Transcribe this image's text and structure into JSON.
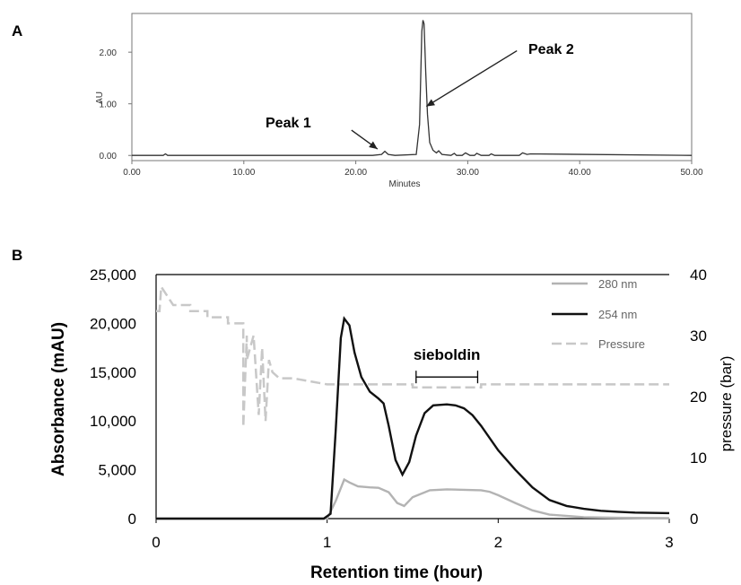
{
  "chart_data": [
    {
      "panel": "A",
      "type": "line",
      "xlabel": "Minutes",
      "ylabel": "AU",
      "xlim": [
        0,
        50
      ],
      "ylim": [
        -0.1,
        2.75
      ],
      "x_ticks": [
        "0.00",
        "10.00",
        "20.00",
        "30.00",
        "40.00",
        "50.00"
      ],
      "y_ticks": [
        "0.00",
        "1.00",
        "2.00"
      ],
      "x_tick_values": [
        0,
        10,
        20,
        30,
        40,
        50
      ],
      "y_tick_values": [
        0,
        1,
        2
      ],
      "series": [
        {
          "color": "#333333",
          "x": [
            0,
            2.8,
            3.0,
            3.2,
            21.5,
            22.3,
            22.6,
            22.9,
            23.5,
            25.4,
            25.7,
            25.9,
            26.0,
            26.1,
            26.25,
            26.4,
            26.6,
            26.9,
            27.2,
            27.4,
            27.7,
            28.5,
            28.8,
            29.0,
            29.5,
            29.8,
            30.2,
            30.6,
            30.8,
            31.2,
            31.9,
            32.1,
            32.4,
            34.6,
            34.9,
            35.3,
            35.6,
            50
          ],
          "y": [
            0,
            0,
            0.03,
            0,
            0,
            0.02,
            0.08,
            0.02,
            0,
            0.02,
            0.6,
            2.4,
            2.62,
            2.55,
            1.6,
            0.8,
            0.25,
            0.1,
            0.05,
            0.09,
            0.02,
            0,
            0.04,
            0,
            0,
            0.05,
            0,
            0,
            0.04,
            0,
            0,
            0.03,
            0,
            0,
            0.05,
            0.02,
            0.03,
            0
          ]
        }
      ],
      "annotations": [
        {
          "text": "Peak 1",
          "x": 22.5,
          "y": 0.09
        },
        {
          "text": "Peak 2",
          "x": 26.3,
          "y": 0.95
        }
      ]
    },
    {
      "panel": "B",
      "type": "line",
      "xlabel": "Retention time (hour)",
      "ylabel": "Absorbance (mAU)",
      "y2label": "pressure (bar)",
      "xlim": [
        0,
        3
      ],
      "ylim": [
        0,
        25000
      ],
      "y2lim": [
        0,
        40
      ],
      "x_ticks": [
        "0",
        "1",
        "2",
        "3"
      ],
      "y_ticks": [
        "0",
        "5,000",
        "10,000",
        "15,000",
        "20,000",
        "25,000"
      ],
      "y2_ticks": [
        "0",
        "10",
        "20",
        "30",
        "40"
      ],
      "x_tick_values": [
        0,
        1,
        2,
        3
      ],
      "y_tick_values": [
        0,
        5000,
        10000,
        15000,
        20000,
        25000
      ],
      "y2_tick_values": [
        0,
        10,
        20,
        30,
        40
      ],
      "legend": {
        "position": "top-right",
        "entries": [
          "280 nm",
          "254 nm",
          "Pressure"
        ]
      },
      "series": [
        {
          "name": "280 nm",
          "color": "#b3b3b3",
          "axis": "left",
          "x": [
            0,
            1.0,
            1.05,
            1.1,
            1.13,
            1.18,
            1.25,
            1.3,
            1.36,
            1.41,
            1.45,
            1.5,
            1.6,
            1.7,
            1.8,
            1.9,
            1.95,
            2.0,
            2.1,
            2.2,
            2.3,
            2.5,
            2.7,
            3.0
          ],
          "y": [
            0,
            0,
            1800,
            4000,
            3700,
            3300,
            3200,
            3150,
            2700,
            1600,
            1300,
            2200,
            2900,
            3000,
            2950,
            2900,
            2750,
            2400,
            1600,
            850,
            400,
            150,
            80,
            50
          ]
        },
        {
          "name": "254 nm",
          "color": "#111111",
          "axis": "left",
          "x": [
            0,
            0.98,
            1.02,
            1.05,
            1.08,
            1.1,
            1.13,
            1.16,
            1.2,
            1.25,
            1.3,
            1.33,
            1.36,
            1.4,
            1.44,
            1.48,
            1.52,
            1.57,
            1.62,
            1.7,
            1.75,
            1.8,
            1.85,
            1.9,
            2.0,
            2.1,
            2.2,
            2.3,
            2.4,
            2.5,
            2.6,
            2.7,
            2.8,
            3.0
          ],
          "y": [
            0,
            0,
            500,
            9000,
            18500,
            20500,
            19800,
            17000,
            14500,
            13000,
            12300,
            11800,
            9500,
            6000,
            4500,
            5800,
            8500,
            10800,
            11600,
            11700,
            11600,
            11300,
            10600,
            9500,
            7000,
            5000,
            3200,
            1900,
            1300,
            1000,
            800,
            700,
            620,
            560
          ]
        },
        {
          "name": "Pressure",
          "color": "#c8c8c8",
          "axis": "right",
          "x": [
            0,
            0.02,
            0.03,
            0.1,
            0.2,
            0.2,
            0.3,
            0.3,
            0.42,
            0.42,
            0.51,
            0.51,
            0.53,
            0.53,
            0.57,
            0.6,
            0.62,
            0.64,
            0.66,
            0.68,
            0.72,
            0.8,
            1.0,
            1.5,
            1.5,
            1.9,
            1.9,
            3.0
          ],
          "y": [
            34,
            34,
            38,
            35,
            35,
            34,
            34,
            33,
            33,
            32,
            32,
            15,
            30,
            26,
            30,
            17,
            28,
            16,
            26,
            24,
            23,
            23,
            22,
            22,
            21.5,
            21.5,
            22,
            22
          ]
        }
      ],
      "annotations": [
        {
          "text": "sieboldin",
          "x_range": [
            1.52,
            1.88
          ],
          "y": 12300
        }
      ]
    }
  ]
}
